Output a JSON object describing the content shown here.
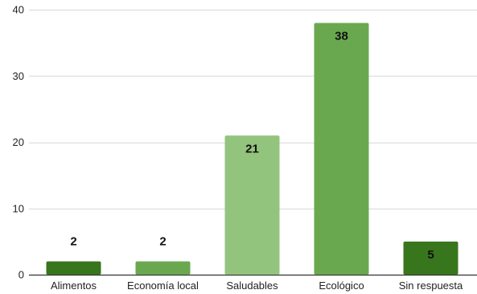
{
  "chart_data": {
    "type": "bar",
    "title": "",
    "xlabel": "",
    "ylabel": "",
    "categories": [
      "Alimentos",
      "Economía local",
      "Saludables",
      "Ecológico",
      "Sin respuesta"
    ],
    "values": [
      2,
      2,
      21,
      38,
      5
    ],
    "data_labels": [
      "2",
      "2",
      "21",
      "38",
      "5"
    ],
    "bar_colors": [
      "#38761d",
      "#6aa84f",
      "#93c47d",
      "#6aa84f",
      "#38761d"
    ],
    "ylim": [
      0,
      40
    ],
    "yticks": [
      0,
      10,
      20,
      30,
      40
    ],
    "ytick_labels": [
      "0",
      "10",
      "20",
      "30",
      "40"
    ],
    "grid": true,
    "legend": "none"
  }
}
